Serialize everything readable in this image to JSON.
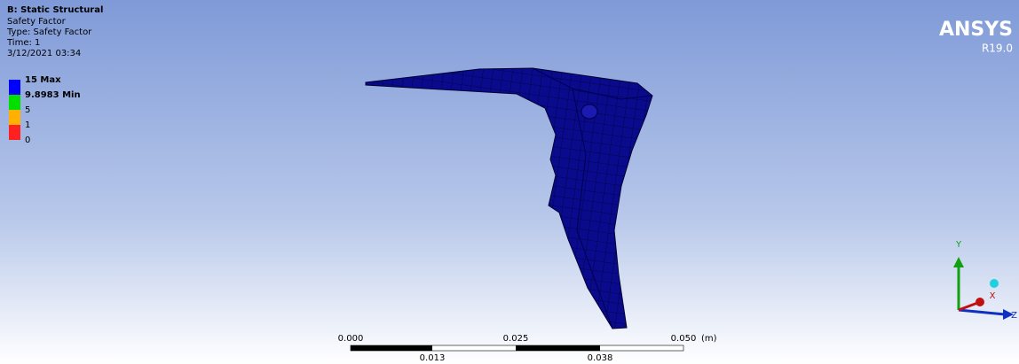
{
  "header": {
    "title": "B: Static Structural",
    "lines": [
      "Safety Factor",
      "Type: Safety Factor",
      "Time: 1",
      "3/12/2021 03:34"
    ]
  },
  "legend": [
    {
      "label": "15 Max",
      "color": "#0000ff"
    },
    {
      "label": "9.8983 Min",
      "color": "#00e000"
    },
    {
      "label": "5",
      "color": "#ffb000"
    },
    {
      "label": "1",
      "color": "#ff2020"
    },
    {
      "label": "0",
      "color": "#ff0000"
    }
  ],
  "logo": {
    "name": "ANSYS",
    "version": "R19.0"
  },
  "scale_bar": {
    "top": [
      "0.000",
      "0.025",
      "0.050"
    ],
    "unit": "(m)",
    "bottom": [
      "0.013",
      "0.038"
    ]
  },
  "triad": {
    "y": "Y",
    "x": "X",
    "z": "Z"
  }
}
